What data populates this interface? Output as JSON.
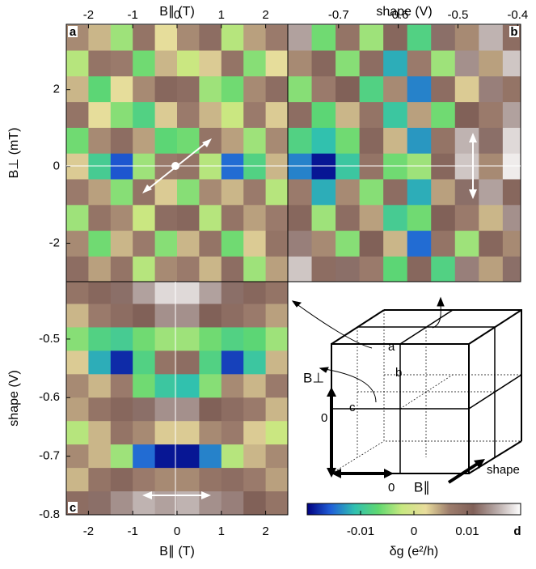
{
  "chart_data": [
    {
      "type": "heatmap",
      "panel": "a",
      "xlabel": "B∥ (T)",
      "ylabel": "B⊥ (mT)",
      "xlim": [
        -2.5,
        2.5
      ],
      "ylim": [
        -3,
        3.7
      ],
      "xticks": [
        -2,
        -1,
        0,
        1,
        2
      ],
      "yticks": [
        -2,
        0,
        2
      ],
      "x": [
        -2.25,
        -1.75,
        -1.25,
        -0.75,
        -0.25,
        0.25,
        0.75,
        1.25,
        1.75,
        2.25
      ],
      "y": [
        3.35,
        2.68,
        2.01,
        1.34,
        0.67,
        0,
        -0.67,
        -1.34,
        -2.01,
        -2.68
      ],
      "z": [
        [
          0.006,
          0.004,
          -0.004,
          0.008,
          0.002,
          0.006,
          0.009,
          -0.003,
          0.005,
          0.007
        ],
        [
          -0.003,
          0.008,
          0.007,
          -0.006,
          0.004,
          -0.002,
          0.003,
          0.008,
          -0.005,
          0.002
        ],
        [
          0.004,
          -0.007,
          0.002,
          0.006,
          0.01,
          0.009,
          -0.004,
          -0.006,
          0.006,
          0.009
        ],
        [
          0.008,
          0.002,
          -0.005,
          -0.008,
          0.003,
          0.007,
          0.004,
          -0.002,
          0.007,
          0.003
        ],
        [
          -0.006,
          0.006,
          0.009,
          0.005,
          -0.007,
          -0.006,
          0.008,
          0.005,
          -0.004,
          0.006
        ],
        [
          0.003,
          -0.009,
          -0.016,
          -0.004,
          0.007,
          0.008,
          -0.003,
          -0.015,
          -0.008,
          0.004
        ],
        [
          0.007,
          0.005,
          -0.005,
          0.008,
          0.003,
          -0.005,
          0.006,
          0.004,
          0.007,
          -0.003
        ],
        [
          -0.004,
          0.008,
          0.006,
          -0.002,
          0.009,
          0.01,
          -0.003,
          0.008,
          0.005,
          0.007
        ],
        [
          0.006,
          -0.006,
          0.004,
          0.007,
          -0.005,
          0.004,
          0.008,
          -0.006,
          0.003,
          0.008
        ],
        [
          0.009,
          0.005,
          0.008,
          -0.003,
          0.006,
          0.007,
          0.004,
          0.009,
          -0.004,
          0.005
        ]
      ]
    },
    {
      "type": "heatmap",
      "panel": "b",
      "xlabel": "shape (V)",
      "xlim": [
        -0.785,
        -0.395
      ],
      "ylim": [
        -3,
        3.7
      ],
      "xticks": [
        -0.7,
        -0.6,
        -0.5,
        -0.4
      ],
      "x": [
        -0.765,
        -0.725,
        -0.685,
        -0.645,
        -0.605,
        -0.565,
        -0.525,
        -0.485,
        -0.445,
        -0.405
      ],
      "y": [
        3.35,
        2.68,
        2.01,
        1.34,
        0.67,
        0,
        -0.67,
        -1.34,
        -2.01,
        -2.68
      ],
      "z": [
        [
          0.015,
          -0.006,
          0.008,
          -0.004,
          0.01,
          -0.008,
          0.012,
          0.006,
          0.016,
          0.009
        ],
        [
          0.006,
          0.01,
          -0.005,
          0.009,
          -0.012,
          0.007,
          -0.004,
          0.014,
          0.005,
          0.017
        ],
        [
          -0.005,
          0.007,
          0.011,
          -0.008,
          0.006,
          -0.014,
          0.009,
          0.003,
          0.013,
          0.008
        ],
        [
          0.009,
          -0.007,
          0.004,
          0.008,
          -0.01,
          0.005,
          -0.006,
          0.011,
          0.007,
          0.015
        ],
        [
          -0.008,
          -0.011,
          -0.006,
          0.01,
          0.004,
          -0.013,
          0.008,
          0.016,
          0.012,
          0.018
        ],
        [
          -0.014,
          -0.019,
          -0.01,
          0.008,
          -0.006,
          -0.004,
          0.01,
          0.017,
          0.006,
          0.019
        ],
        [
          0.007,
          -0.012,
          0.006,
          -0.005,
          0.009,
          -0.012,
          0.005,
          0.012,
          0.015,
          0.01
        ],
        [
          0.01,
          -0.004,
          0.009,
          0.005,
          -0.009,
          -0.006,
          0.011,
          0.007,
          0.004,
          0.014
        ],
        [
          0.013,
          0.006,
          -0.005,
          0.011,
          0.004,
          -0.015,
          0.008,
          -0.004,
          0.01,
          0.006
        ],
        [
          0.017,
          0.009,
          0.012,
          0.007,
          -0.007,
          0.01,
          -0.008,
          0.013,
          0.005,
          0.012
        ]
      ]
    },
    {
      "type": "heatmap",
      "panel": "c",
      "xlabel": "B∥ (T)",
      "ylabel": "shape (V)",
      "xlim": [
        -2.5,
        2.5
      ],
      "ylim": [
        -0.8,
        -0.402
      ],
      "xticks": [
        -2,
        -1,
        0,
        1,
        2
      ],
      "yticks": [
        -0.5,
        -0.6,
        -0.7,
        -0.8
      ],
      "x": [
        -2.25,
        -1.75,
        -1.25,
        -0.75,
        -0.25,
        0.25,
        0.75,
        1.25,
        1.75,
        2.25
      ],
      "y": [
        -0.42,
        -0.46,
        -0.5,
        -0.54,
        -0.58,
        -0.62,
        -0.66,
        -0.7,
        -0.74,
        -0.78
      ],
      "z": [
        [
          0.008,
          0.01,
          0.012,
          0.015,
          0.018,
          0.018,
          0.015,
          0.012,
          0.01,
          0.008
        ],
        [
          0.004,
          0.007,
          0.009,
          0.011,
          0.014,
          0.014,
          0.011,
          0.009,
          0.007,
          0.005
        ],
        [
          -0.005,
          -0.008,
          -0.009,
          -0.006,
          -0.004,
          -0.004,
          -0.006,
          -0.008,
          -0.007,
          -0.004
        ],
        [
          0.003,
          -0.012,
          -0.018,
          -0.008,
          0.008,
          0.009,
          -0.008,
          -0.017,
          -0.01,
          0.004
        ],
        [
          0.006,
          0.004,
          0.007,
          -0.006,
          -0.01,
          -0.011,
          -0.005,
          0.006,
          0.004,
          0.007
        ],
        [
          0.005,
          0.008,
          0.01,
          0.012,
          0.014,
          0.014,
          0.011,
          0.009,
          0.007,
          0.004
        ],
        [
          -0.003,
          0.004,
          0.008,
          0.006,
          0.003,
          0.003,
          0.006,
          0.007,
          0.003,
          -0.002
        ],
        [
          0.006,
          0.004,
          -0.004,
          -0.015,
          -0.019,
          -0.019,
          -0.014,
          -0.003,
          0.004,
          0.006
        ],
        [
          0.004,
          0.008,
          0.01,
          0.007,
          0.006,
          0.006,
          0.008,
          0.009,
          0.007,
          0.005
        ],
        [
          0.009,
          0.012,
          0.014,
          0.016,
          0.015,
          0.016,
          0.014,
          0.013,
          0.011,
          0.008
        ]
      ]
    },
    {
      "type": "colorbar",
      "panel": "d",
      "xlabel": "δg (e²/h)",
      "xlim": [
        -0.02,
        0.02
      ],
      "xticks": [
        -0.01,
        0,
        0.01
      ],
      "colormap": [
        "#000080",
        "#2060d8",
        "#30c0b0",
        "#60d870",
        "#c8e880",
        "#e8dc9c",
        "#9c7c6c",
        "#806058",
        "#b8aaa8",
        "#ffffff"
      ]
    }
  ],
  "diagram": {
    "labels": {
      "perp": "B⊥",
      "zero_v": "0",
      "zero_h": "0",
      "par": "B∥",
      "shape": "shape",
      "a": "a",
      "b": "b",
      "c": "c"
    }
  }
}
